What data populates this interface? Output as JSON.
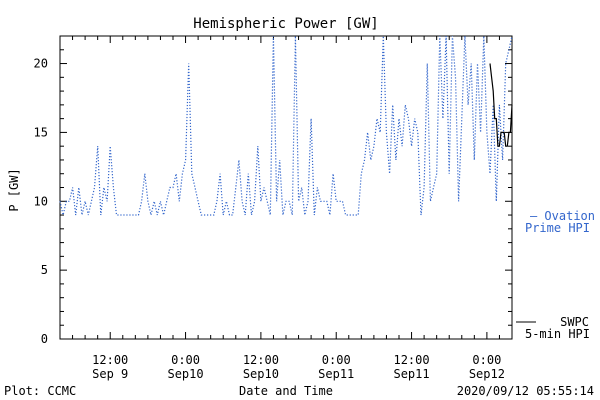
{
  "chart_data": {
    "type": "line",
    "title": "Hemispheric Power [GW]",
    "ylabel": "P [GW]",
    "xlabel": "Date and Time",
    "ylim": [
      0,
      22
    ],
    "yticks": [
      0,
      5,
      10,
      15,
      20
    ],
    "x_unit": "hours since 2020/09/08 00:00",
    "xlim": [
      28,
      100
    ],
    "xticks": [
      {
        "x": 36,
        "time": "12:00",
        "date": "Sep 9"
      },
      {
        "x": 48,
        "time": "0:00",
        "date": "Sep10"
      },
      {
        "x": 60,
        "time": "12:00",
        "date": "Sep10"
      },
      {
        "x": 72,
        "time": "0:00",
        "date": "Sep11"
      },
      {
        "x": 84,
        "time": "12:00",
        "date": "Sep11"
      },
      {
        "x": 96,
        "time": "0:00",
        "date": "Sep12"
      }
    ],
    "footer": {
      "left": "Plot: CCMC",
      "right": "2020/09/12 05:55:14"
    },
    "series": [
      {
        "name": "Ovation Prime HPI",
        "name_line1": "— Ovation",
        "name_line2": "Prime HPI",
        "color": "#3366cc",
        "style": "dotted",
        "x": [
          28.0,
          28.5,
          29.0,
          29.5,
          30.0,
          30.5,
          31.0,
          31.5,
          32.0,
          32.5,
          33.0,
          33.5,
          34.0,
          34.5,
          35.0,
          35.5,
          36.0,
          36.5,
          37.0,
          37.5,
          38.0,
          38.5,
          39.0,
          39.5,
          40.0,
          40.5,
          41.0,
          41.5,
          42.0,
          42.5,
          43.0,
          43.5,
          44.0,
          44.5,
          45.0,
          45.5,
          46.0,
          46.5,
          47.0,
          47.5,
          48.0,
          48.5,
          49.0,
          49.5,
          50.0,
          50.5,
          51.0,
          51.5,
          52.0,
          52.5,
          53.0,
          53.5,
          54.0,
          54.5,
          55.0,
          55.5,
          56.0,
          56.5,
          57.0,
          57.5,
          58.0,
          58.5,
          59.0,
          59.5,
          60.0,
          60.5,
          61.0,
          61.5,
          62.0,
          62.5,
          63.0,
          63.5,
          64.0,
          64.5,
          65.0,
          65.5,
          66.0,
          66.5,
          67.0,
          67.5,
          68.0,
          68.5,
          69.0,
          69.5,
          70.0,
          70.5,
          71.0,
          71.5,
          72.0,
          72.5,
          73.0,
          73.5,
          74.0,
          74.5,
          75.0,
          75.5,
          76.0,
          76.5,
          77.0,
          77.5,
          78.0,
          78.5,
          79.0,
          79.5,
          80.0,
          80.5,
          81.0,
          81.5,
          82.0,
          82.5,
          83.0,
          83.5,
          84.0,
          84.5,
          85.0,
          85.5,
          86.0,
          86.5,
          87.0,
          87.5,
          88.0,
          88.5,
          89.0,
          89.5,
          90.0,
          90.5,
          91.0,
          91.5,
          92.0,
          92.5,
          93.0,
          93.5,
          94.0,
          94.5,
          95.0,
          95.5,
          96.0,
          96.5,
          97.0,
          97.5,
          98.0,
          98.5,
          99.0,
          99.5,
          100.0
        ],
        "values": [
          10,
          9,
          10,
          10,
          11,
          9,
          11,
          9,
          10,
          9,
          10,
          11,
          14,
          9,
          11,
          10,
          14,
          11,
          9,
          9,
          9,
          9,
          9,
          9,
          9,
          9,
          10,
          12,
          10,
          9,
          10,
          9,
          10,
          9,
          10,
          11,
          11,
          12,
          10,
          12,
          13,
          20,
          12,
          11,
          10,
          9,
          9,
          9,
          9,
          9,
          10,
          12,
          9,
          10,
          9,
          9,
          11,
          13,
          10,
          9,
          12,
          9,
          10,
          14,
          10,
          11,
          10,
          9,
          22,
          10,
          13,
          9,
          10,
          10,
          9,
          22,
          10,
          11,
          9,
          10,
          16,
          9,
          11,
          10,
          10,
          10,
          9,
          12,
          10,
          10,
          10,
          9,
          9,
          9,
          9,
          9,
          12,
          13,
          15,
          13,
          14,
          16,
          15,
          22,
          15,
          12,
          17,
          13,
          16,
          14,
          17,
          16,
          14,
          16,
          15,
          9,
          11,
          20,
          10,
          11,
          12,
          22,
          16,
          22,
          12,
          22,
          19,
          10,
          16,
          22,
          17,
          20,
          13,
          20,
          15,
          22,
          15,
          12,
          17,
          10,
          17,
          13,
          20,
          21,
          22
        ]
      },
      {
        "name": "SWPC 5-min HPI",
        "name_line1": "SWPC",
        "name_line2": "5-min HPI",
        "color": "#000000",
        "style": "solid",
        "x": [
          96.5,
          96.75,
          97.0,
          97.25,
          97.5,
          97.75,
          98.0,
          98.25,
          98.5,
          98.75,
          99.0,
          99.25,
          99.5,
          99.75,
          100.0
        ],
        "values": [
          20,
          19,
          18,
          16,
          16,
          14,
          14,
          15,
          15,
          15,
          14,
          14,
          15,
          15,
          17
        ]
      }
    ]
  }
}
